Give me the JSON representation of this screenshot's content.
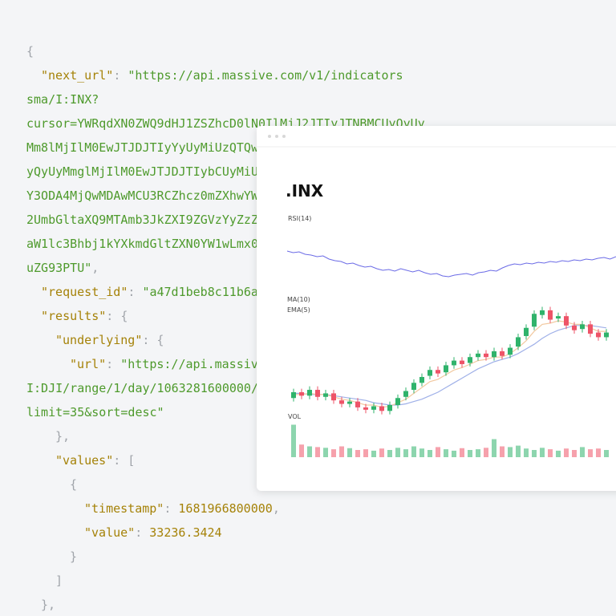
{
  "code": {
    "colors": {
      "key": "#a58208",
      "str": "#4e9a2c",
      "punct": "#a0a4aa",
      "num": "#a58208"
    },
    "lines": [
      [
        {
          "text": "{",
          "kind": "punct"
        }
      ],
      [
        {
          "text": "\"next_url\"",
          "kind": "key"
        },
        {
          "text": ": ",
          "kind": "punct"
        },
        {
          "text": "\"https://api.massive.com/v1/indicators",
          "kind": "str"
        }
      ],
      [
        {
          "text": "sma/I:INX?",
          "kind": "str"
        }
      ],
      [
        {
          "text": "cursor=YWRqdXN0ZWQ9dHJ1ZSZhcD0lN0IlMjJ2JTIyJTNBMCUyQyUy",
          "kind": "str"
        }
      ],
      [
        {
          "text": "Mm8lMjIlM0EwJTJDJTIyYyUyMiUzQTQw",
          "kind": "str"
        }
      ],
      [
        {
          "text": "yQyUyMmglMjIlM0EwJTJDJTIybCUyMiU",
          "kind": "str"
        }
      ],
      [
        {
          "text": "Y3ODA4MjQwMDAwMCU3RCZhcz0mZXhwYW",
          "kind": "str"
        }
      ],
      [
        {
          "text": "2UmbGltaXQ9MTAmb3JkZXI9ZGVzYyZzZ",
          "kind": "str"
        }
      ],
      [
        {
          "text": "aW1lc3Bhbj1kYXkmdGltZXN0YW1wLmx0",
          "kind": "str"
        }
      ],
      [
        {
          "text": "uZG93PTU\"",
          "kind": "str"
        },
        {
          "text": ",",
          "kind": "punct"
        }
      ],
      [
        {
          "text": "\"request_id\"",
          "kind": "key"
        },
        {
          "text": ": ",
          "kind": "punct"
        },
        {
          "text": "\"a47d1beb8c11b6a",
          "kind": "str"
        }
      ],
      [
        {
          "text": "\"results\"",
          "kind": "key"
        },
        {
          "text": ": {",
          "kind": "punct"
        }
      ],
      [
        {
          "text": "\"underlying\"",
          "kind": "key"
        },
        {
          "text": ": {",
          "kind": "punct"
        }
      ],
      [
        {
          "text": "\"url\"",
          "kind": "key"
        },
        {
          "text": ": ",
          "kind": "punct"
        },
        {
          "text": "\"https://api.massiv",
          "kind": "str"
        }
      ],
      [
        {
          "text": "I:DJI/range/1/day/1063281600000/",
          "kind": "str"
        }
      ],
      [
        {
          "text": "limit=35&sort=desc\"",
          "kind": "str"
        }
      ],
      [
        {
          "text": "},",
          "kind": "punct"
        }
      ],
      [
        {
          "text": "\"values\"",
          "kind": "key"
        },
        {
          "text": ": [",
          "kind": "punct"
        }
      ],
      [
        {
          "text": "{",
          "kind": "punct"
        }
      ],
      [
        {
          "text": "\"timestamp\"",
          "kind": "key"
        },
        {
          "text": ": ",
          "kind": "punct"
        },
        {
          "text": "1681966800000",
          "kind": "num"
        },
        {
          "text": ",",
          "kind": "punct"
        }
      ],
      [
        {
          "text": "\"value\"",
          "kind": "key"
        },
        {
          "text": ": ",
          "kind": "punct"
        },
        {
          "text": "33236.3424",
          "kind": "num"
        }
      ],
      [
        {
          "text": "}",
          "kind": "punct"
        }
      ],
      [
        {
          "text": "]",
          "kind": "punct"
        }
      ],
      [
        {
          "text": "},",
          "kind": "punct"
        }
      ]
    ]
  },
  "chart_data": {
    "type": "candlestick",
    "title": ".INX",
    "up_color": "#2fb36b",
    "down_color": "#ee5468",
    "rsi": {
      "label": "RSI(14)",
      "color": "#6b6be6",
      "ylim": [
        20,
        80
      ],
      "values": [
        62,
        60,
        61,
        58,
        57,
        55,
        56,
        52,
        50,
        49,
        46,
        47,
        44,
        42,
        43,
        40,
        38,
        39,
        37,
        40,
        38,
        36,
        38,
        35,
        33,
        34,
        31,
        30,
        32,
        33,
        34,
        32,
        35,
        36,
        38,
        37,
        41,
        44,
        46,
        45,
        47,
        46,
        48,
        47,
        49,
        48,
        50,
        49,
        51,
        50,
        52,
        51,
        53,
        54,
        52,
        55
      ]
    },
    "ylim": [
      -10,
      110
    ],
    "open": [
      20,
      25,
      22,
      27,
      21,
      24,
      18,
      15,
      17,
      12,
      10,
      13,
      9,
      14,
      21,
      27,
      33,
      39,
      44,
      42,
      48,
      52,
      50,
      55,
      58,
      55,
      60,
      57,
      64,
      73,
      81,
      91,
      95,
      88,
      90,
      82,
      79,
      83,
      76,
      72
    ],
    "close": [
      25,
      22,
      27,
      21,
      24,
      18,
      15,
      17,
      12,
      10,
      13,
      9,
      14,
      20,
      26,
      33,
      38,
      44,
      41,
      48,
      52,
      49,
      55,
      58,
      55,
      60,
      56,
      63,
      72,
      80,
      92,
      95,
      87,
      90,
      82,
      78,
      83,
      75,
      72,
      76
    ],
    "high": [
      28,
      28,
      30,
      30,
      27,
      27,
      21,
      20,
      20,
      15,
      16,
      16,
      17,
      23,
      29,
      36,
      41,
      47,
      47,
      51,
      55,
      55,
      58,
      61,
      61,
      63,
      63,
      66,
      75,
      83,
      95,
      98,
      98,
      93,
      93,
      85,
      86,
      86,
      79,
      79
    ],
    "low": [
      17,
      19,
      19,
      18,
      18,
      15,
      12,
      12,
      9,
      7,
      7,
      6,
      6,
      11,
      18,
      24,
      30,
      36,
      38,
      39,
      45,
      46,
      47,
      52,
      52,
      52,
      53,
      54,
      61,
      70,
      78,
      88,
      84,
      85,
      79,
      75,
      76,
      72,
      69,
      69
    ],
    "lines": [
      {
        "name": "MA(10)",
        "color": "#9fb0e8",
        "values": [
          24,
          24,
          23,
          23,
          23,
          22,
          21,
          20,
          19,
          18,
          16,
          15,
          14,
          14,
          15,
          17,
          19,
          22,
          25,
          29,
          33,
          37,
          41,
          45,
          48,
          51,
          53,
          55,
          58,
          62,
          66,
          71,
          75,
          78,
          80,
          82,
          82,
          82,
          81,
          80
        ]
      },
      {
        "name": "EMA(5)",
        "color": "#f2c9a0",
        "values": [
          23,
          23,
          24,
          23,
          23,
          21,
          19,
          18,
          16,
          14,
          14,
          12,
          13,
          16,
          19,
          24,
          29,
          34,
          36,
          40,
          44,
          46,
          49,
          52,
          53,
          55,
          55,
          58,
          63,
          69,
          77,
          83,
          84,
          86,
          85,
          83,
          83,
          80,
          77,
          77
        ]
      }
    ],
    "volume": {
      "label": "VOL",
      "ylim": [
        0,
        100
      ],
      "values": [
        90,
        35,
        30,
        28,
        26,
        22,
        30,
        25,
        20,
        22,
        18,
        24,
        20,
        26,
        22,
        30,
        24,
        20,
        28,
        22,
        18,
        25,
        20,
        22,
        26,
        50,
        30,
        28,
        32,
        24,
        20,
        26,
        22,
        18,
        24,
        20,
        28,
        22,
        24,
        20
      ]
    }
  }
}
